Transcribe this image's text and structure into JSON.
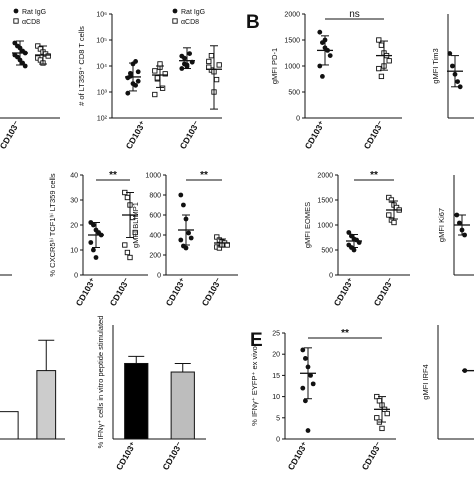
{
  "panel_letters": {
    "b": "B",
    "e": "E"
  },
  "chart_data": [
    {
      "id": "a1",
      "type": "scatter",
      "ylabel": "",
      "categories": [],
      "cut": "right",
      "legend": [
        {
          "name": "Rat IgG",
          "marker": "filled"
        },
        {
          "name": "αCD8",
          "marker": "open"
        }
      ],
      "x_tick_labels": [
        "CD103⁻"
      ],
      "series": [
        {
          "name": "Rat IgG",
          "marker": "filled",
          "values": [
            0.75,
            0.72,
            0.7,
            0.67,
            0.65,
            0.63,
            0.61,
            0.58,
            0.55,
            0.52
          ],
          "mean": 0.65,
          "sd": 0.12
        },
        {
          "name": "αCD8",
          "marker": "open",
          "values": [
            0.72,
            0.69,
            0.66,
            0.64,
            0.62,
            0.6,
            0.58,
            0.55
          ],
          "mean": 0.63,
          "sd": 0.09
        }
      ]
    },
    {
      "id": "a2",
      "type": "scatter",
      "ylabel": "# of LT359⁺ CD8 T cells",
      "yscale": "log",
      "ylim": [
        100,
        1000000
      ],
      "yticks": [
        "10²",
        "10³",
        "10⁴",
        "10⁵",
        "10⁶"
      ],
      "legend": [
        {
          "name": "Rat IgG",
          "marker": "filled"
        },
        {
          "name": "αCD8",
          "marker": "open"
        }
      ],
      "x_tick_labels": [
        "CD103⁺",
        "CD103⁻"
      ],
      "series": [
        {
          "name": "Rat IgG",
          "marker": "filled",
          "group": 0,
          "values": [
            [
              3500,
              5200,
              12000,
              1800,
              2600,
              900,
              4000,
              2100,
              15000,
              6000
            ],
            [
              24000,
              12000,
              9500,
              30000,
              14000,
              8000,
              20000,
              11000
            ]
          ],
          "mean": [
            3800,
            16000
          ],
          "err_lo": [
            1100,
            8000
          ],
          "err_hi": [
            13000,
            50000
          ]
        },
        {
          "name": "αCD8",
          "marker": "open",
          "group": 1,
          "values": [
            [
              6500,
              3200,
              9000,
              1400,
              5000,
              800,
              3500,
              12000
            ],
            [
              15000,
              7000,
              1000,
              3000,
              11000,
              9000,
              25000,
              6000
            ]
          ],
          "mean": [
            4500,
            7500
          ],
          "err_lo": [
            1500,
            220
          ],
          "err_hi": [
            10000,
            60000
          ]
        }
      ]
    },
    {
      "id": "b1",
      "type": "scatter",
      "ylabel": "gMFI PD-1",
      "ylim": [
        0,
        2000
      ],
      "yticks": [
        "0",
        "500",
        "1000",
        "1500",
        "2000"
      ],
      "x_tick_labels": [
        "CD103⁺",
        "CD103⁻"
      ],
      "sig": "ns",
      "series": [
        {
          "marker": "filled",
          "values": [
            1650,
            1450,
            1350,
            1300,
            1200,
            1000,
            800,
            1500
          ],
          "mean": 1300,
          "sd": 280
        },
        {
          "marker": "open",
          "values": [
            1500,
            1400,
            1250,
            1200,
            1100,
            950,
            800,
            1000
          ],
          "mean": 1200,
          "sd": 280
        }
      ]
    },
    {
      "id": "b2",
      "type": "scatter",
      "ylabel": "gMFI Tim3",
      "cut": "right",
      "categories": [],
      "series": [
        {
          "marker": "filled",
          "values": [
            0.62,
            0.5,
            0.42,
            0.35,
            0.3
          ],
          "mean": 0.45,
          "sd": 0.15
        }
      ]
    },
    {
      "id": "c1",
      "type": "scatter",
      "ylabel": "",
      "cut": "left",
      "categories": [],
      "series": []
    },
    {
      "id": "c2",
      "type": "scatter",
      "ylabel": "% CXCR5ʰⁱ TCF1ʰⁱ LT359 cells",
      "ylim": [
        0,
        40
      ],
      "yticks": [
        "0",
        "10",
        "20",
        "30",
        "40"
      ],
      "x_tick_labels": [
        "CD103⁺",
        "CD103⁻"
      ],
      "sig": "**",
      "series": [
        {
          "marker": "filled",
          "values": [
            21,
            20,
            18,
            17,
            16,
            13,
            10,
            7
          ],
          "mean": 16,
          "sd": 5
        },
        {
          "marker": "open",
          "values": [
            33,
            31,
            28,
            23,
            17,
            12,
            9,
            7
          ],
          "mean": 24,
          "sd": 9
        }
      ]
    },
    {
      "id": "c3",
      "type": "scatter",
      "ylabel": "gMFI BLIMP1",
      "ylim": [
        0,
        1000
      ],
      "yticks": [
        "0",
        "200",
        "400",
        "600",
        "800",
        "1000"
      ],
      "x_tick_labels": [
        "CD103⁺",
        "CD103⁻"
      ],
      "sig": "**",
      "series": [
        {
          "marker": "filled",
          "values": [
            800,
            700,
            560,
            420,
            370,
            350,
            290,
            270
          ],
          "mean": 450,
          "sd": 150
        },
        {
          "marker": "open",
          "values": [
            380,
            350,
            330,
            320,
            300,
            280,
            270,
            300
          ],
          "mean": 320,
          "sd": 40
        }
      ]
    },
    {
      "id": "c4",
      "type": "scatter",
      "ylabel": "gMFI EOMES",
      "ylim": [
        0,
        2000
      ],
      "yticks": [
        "0",
        "500",
        "1000",
        "1500",
        "2000"
      ],
      "x_tick_labels": [
        "CD103⁺",
        "CD103⁻"
      ],
      "sig": "**",
      "series": [
        {
          "marker": "filled",
          "values": [
            850,
            780,
            720,
            700,
            650,
            600,
            550,
            500
          ],
          "mean": 680,
          "sd": 130
        },
        {
          "marker": "open",
          "values": [
            1550,
            1500,
            1400,
            1350,
            1300,
            1200,
            1100,
            1050
          ],
          "mean": 1300,
          "sd": 180
        }
      ]
    },
    {
      "id": "c5",
      "type": "scatter",
      "ylabel": "gMFI Ki67",
      "cut": "right",
      "categories": [],
      "series": [
        {
          "marker": "filled",
          "values": [
            0.6,
            0.52,
            0.45,
            0.4
          ],
          "mean": 0.5,
          "sd": 0.1
        }
      ]
    },
    {
      "id": "d1",
      "type": "bar",
      "ylabel": "",
      "cut": "left",
      "categories": [
        "",
        ""
      ],
      "series": [
        {
          "values": [
            18,
            45
          ],
          "err_hi": [
            null,
            65
          ],
          "colors": [
            "#ffffff",
            "#cccccc"
          ]
        }
      ],
      "ylim": [
        0,
        75
      ]
    },
    {
      "id": "d2",
      "type": "bar",
      "ylabel": "% IFNγ⁺ cells in vitro peptide stimulated",
      "ylim": [
        0,
        80
      ],
      "yticks": [],
      "categories": [
        "CD103⁺",
        "CD103⁻"
      ],
      "series": [
        {
          "values": [
            53,
            47
          ],
          "err_hi": [
            58,
            53
          ],
          "colors": [
            "#000000",
            "#bdbdbd"
          ]
        }
      ]
    },
    {
      "id": "e1",
      "type": "scatter",
      "ylabel": "% IFNγ⁺ EYFP⁺ ex vivo",
      "ylim": [
        0,
        25
      ],
      "yticks": [
        "0",
        "5",
        "10",
        "15",
        "20",
        "25"
      ],
      "x_tick_labels": [
        "CD103⁺",
        "CD103⁻"
      ],
      "sig": "**",
      "series": [
        {
          "marker": "filled",
          "values": [
            21,
            19,
            17,
            15,
            13,
            12,
            9,
            2
          ],
          "mean": 15.5,
          "sd": 6
        },
        {
          "marker": "open",
          "values": [
            10,
            9,
            8,
            7,
            6,
            5,
            4,
            2.5
          ],
          "mean": 7,
          "sd": 3
        }
      ]
    },
    {
      "id": "e2",
      "type": "scatter",
      "ylabel": "gMFI IRF4",
      "cut": "right",
      "categories": [],
      "series": [
        {
          "marker": "filled",
          "values": [
            0.6
          ],
          "mean": 0.6,
          "sd": 0
        }
      ]
    }
  ]
}
